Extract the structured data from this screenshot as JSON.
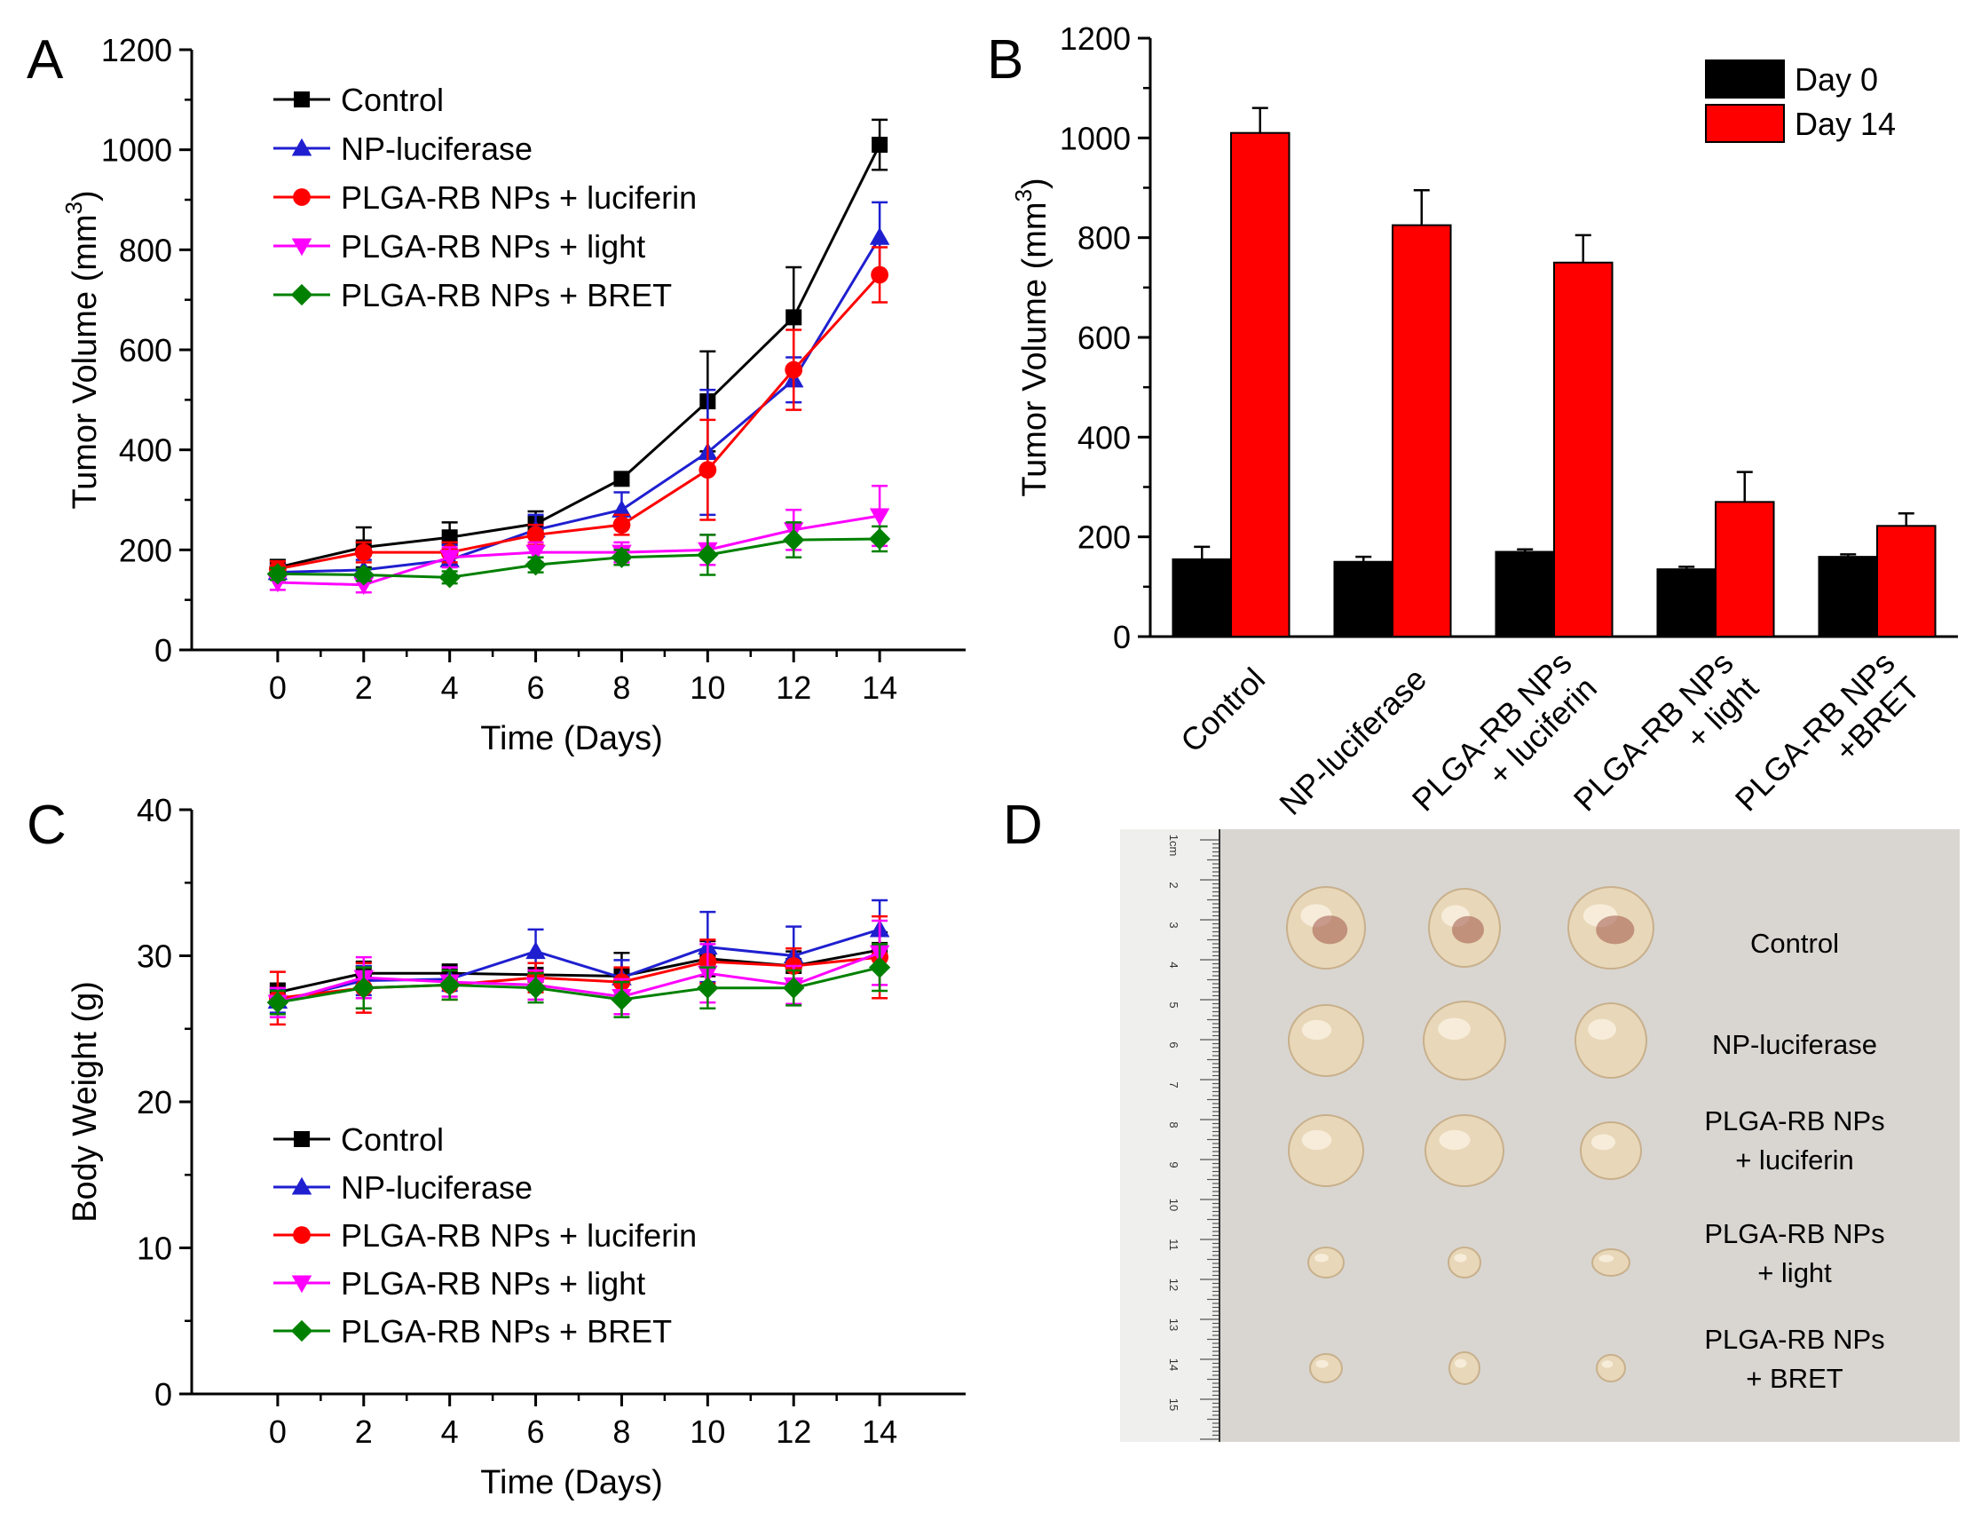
{
  "chart_data": [
    {
      "panel": "A",
      "type": "line",
      "xlabel": "Time (Days)",
      "ylabel": "Tumor Volume (mm",
      "ylabel_sup": "3",
      "ylabel_close": ")",
      "x": [
        0,
        2,
        4,
        6,
        8,
        10,
        12,
        14
      ],
      "xlim": [
        -2,
        16
      ],
      "ylim": [
        0,
        1200
      ],
      "yticks": [
        0,
        200,
        400,
        600,
        800,
        1000,
        1200
      ],
      "xticks": [
        0,
        2,
        4,
        6,
        8,
        10,
        12,
        14
      ],
      "legend_position": "top-left",
      "series": [
        {
          "name": "Control",
          "color": "#000000",
          "marker": "square",
          "values": [
            165,
            205,
            225,
            252,
            342,
            497,
            665,
            1010
          ],
          "errors": [
            15,
            40,
            30,
            25,
            10,
            100,
            100,
            50
          ]
        },
        {
          "name": "NP-luciferase",
          "color": "#1f1fd0",
          "marker": "triangle-up",
          "values": [
            155,
            160,
            180,
            240,
            280,
            395,
            540,
            825
          ],
          "errors": [
            15,
            20,
            30,
            30,
            35,
            125,
            45,
            70
          ]
        },
        {
          "name": "PLGA-RB NPs + luciferin",
          "color": "#ff0000",
          "marker": "circle",
          "values": [
            162,
            195,
            195,
            230,
            250,
            360,
            560,
            750
          ],
          "errors": [
            15,
            20,
            20,
            20,
            20,
            100,
            80,
            55
          ]
        },
        {
          "name": "PLGA-RB NPs + light",
          "color": "#ff00ff",
          "marker": "triangle-down",
          "values": [
            135,
            130,
            185,
            195,
            195,
            200,
            240,
            268
          ],
          "errors": [
            15,
            15,
            20,
            20,
            20,
            30,
            40,
            60
          ]
        },
        {
          "name": "PLGA-RB NPs + BRET",
          "color": "#008000",
          "marker": "diamond",
          "values": [
            152,
            150,
            145,
            170,
            185,
            190,
            220,
            222
          ],
          "errors": [
            12,
            12,
            12,
            15,
            15,
            40,
            35,
            25
          ]
        }
      ]
    },
    {
      "panel": "B",
      "type": "bar",
      "xlabel": "",
      "ylabel": "Tumor Volume (mm",
      "ylabel_sup": "3",
      "ylabel_close": ")",
      "ylim": [
        0,
        1200
      ],
      "yticks": [
        0,
        200,
        400,
        600,
        800,
        1000,
        1200
      ],
      "categories": [
        [
          "Control"
        ],
        [
          "NP-luciferase"
        ],
        [
          "PLGA-RB NPs",
          "+ luciferin"
        ],
        [
          "PLGA-RB NPs",
          "+ light"
        ],
        [
          "PLGA-RB NPs",
          "+BRET"
        ]
      ],
      "legend_position": "top-right",
      "series": [
        {
          "name": "Day 0",
          "color": "#000000",
          "values": [
            155,
            150,
            170,
            135,
            160
          ],
          "errors": [
            25,
            10,
            5,
            5,
            5
          ]
        },
        {
          "name": "Day 14",
          "color": "#ff0000",
          "values": [
            1010,
            825,
            750,
            270,
            222
          ],
          "errors": [
            50,
            70,
            55,
            60,
            25
          ]
        }
      ]
    },
    {
      "panel": "C",
      "type": "line",
      "xlabel": "Time (Days)",
      "ylabel": "Body Weight (g)",
      "x": [
        0,
        2,
        4,
        6,
        8,
        10,
        12,
        14
      ],
      "xlim": [
        -2,
        16
      ],
      "ylim": [
        0,
        40
      ],
      "yticks": [
        0,
        10,
        20,
        30,
        40
      ],
      "xticks": [
        0,
        2,
        4,
        6,
        8,
        10,
        12,
        14
      ],
      "legend_position": "bottom-left",
      "series": [
        {
          "name": "Control",
          "color": "#000000",
          "marker": "square",
          "values": [
            27.5,
            28.8,
            28.8,
            28.7,
            28.6,
            29.8,
            29.3,
            30.4
          ],
          "errors": [
            0.6,
            0.8,
            0.6,
            0.8,
            1.6,
            1.2,
            1.0,
            1.2
          ]
        },
        {
          "name": "NP-luciferase",
          "color": "#1f1fd0",
          "marker": "triangle-up",
          "values": [
            26.9,
            28.3,
            28.4,
            30.3,
            28.5,
            30.6,
            30.0,
            31.8
          ],
          "errors": [
            0.8,
            1.0,
            0.8,
            1.5,
            1.2,
            2.4,
            2.0,
            2.0
          ]
        },
        {
          "name": "PLGA-RB NPs + luciferin",
          "color": "#ff0000",
          "marker": "circle",
          "values": [
            27.1,
            27.8,
            28.0,
            28.5,
            28.2,
            29.6,
            29.3,
            29.9
          ],
          "errors": [
            1.8,
            1.7,
            1.0,
            1.0,
            1.0,
            1.5,
            1.2,
            2.8
          ]
        },
        {
          "name": "PLGA-RB NPs + light",
          "color": "#ff00ff",
          "marker": "triangle-down",
          "values": [
            26.8,
            28.5,
            28.2,
            28.0,
            27.2,
            28.8,
            28.0,
            30.2
          ],
          "errors": [
            1.0,
            1.4,
            1.0,
            1.0,
            1.2,
            2.0,
            1.3,
            2.2
          ]
        },
        {
          "name": "PLGA-RB NPs + BRET",
          "color": "#008000",
          "marker": "diamond",
          "values": [
            26.8,
            27.8,
            28.0,
            27.8,
            27.0,
            27.8,
            27.8,
            29.2
          ],
          "errors": [
            0.8,
            1.4,
            1.0,
            1.0,
            1.2,
            1.4,
            1.2,
            1.6
          ]
        }
      ]
    }
  ],
  "photo_d": {
    "panel": "D",
    "labels": [
      [
        "Control"
      ],
      [
        "NP-luciferase"
      ],
      [
        "PLGA-RB NPs",
        "+ luciferin"
      ],
      [
        "PLGA-RB NPs",
        "+ light"
      ],
      [
        "PLGA-RB NPs",
        "+ BRET"
      ]
    ],
    "ruler_numbers": [
      "1cm",
      "2",
      "3",
      "4",
      "5",
      "6",
      "7",
      "8",
      "9",
      "10",
      "11",
      "12",
      "13",
      "14",
      "15"
    ]
  },
  "colors": {
    "background": "#ffffff",
    "photo_background": "#d9d6d2",
    "tissue": "#e8d7b8"
  }
}
